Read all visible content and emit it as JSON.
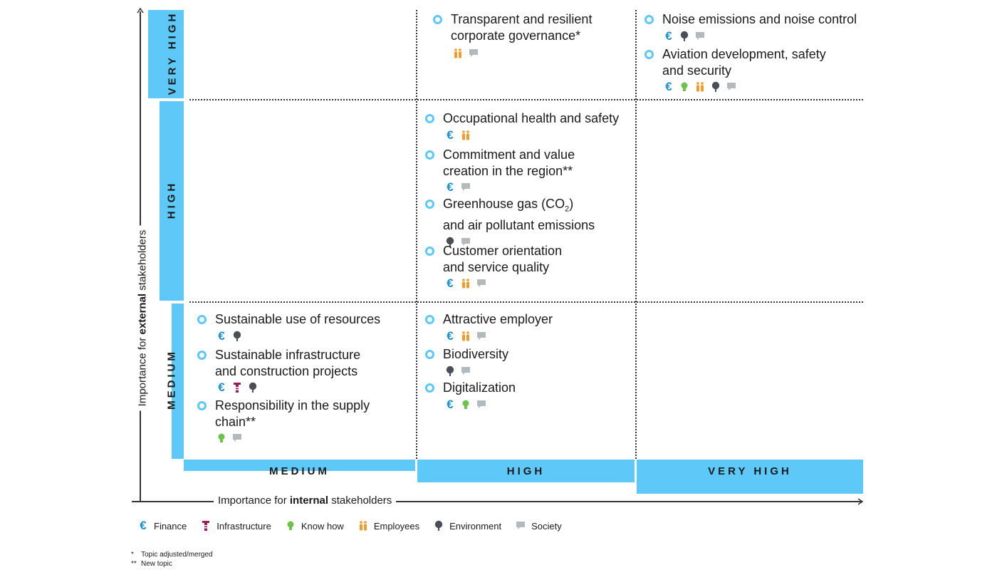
{
  "y_axis": {
    "label_prefix": "Importance for ",
    "label_bold": "external",
    "label_suffix": " stakeholders",
    "levels": [
      "MEDIUM",
      "HIGH",
      "VERY HIGH"
    ]
  },
  "x_axis": {
    "label_prefix": "Importance for ",
    "label_bold": "internal",
    "label_suffix": " stakeholders",
    "levels": [
      "MEDIUM",
      "HIGH",
      "VERY HIGH"
    ]
  },
  "colors": {
    "bar": "#5ec8f8",
    "finance": "#1a8fc9",
    "infrastructure": "#a0195c",
    "know_how": "#6cc24a",
    "employees": "#f39a2b",
    "environment": "#4a4f55",
    "society": "#b4b9be"
  },
  "topics": [
    {
      "id": "governance",
      "title": "Transparent and resilient\ncorporate governance*",
      "external": "VERY HIGH",
      "internal": "HIGH",
      "icons": [
        "employees",
        "society"
      ]
    },
    {
      "id": "noise",
      "title": "Noise emissions and noise control",
      "external": "VERY HIGH",
      "internal": "VERY HIGH",
      "icons": [
        "finance",
        "environment",
        "society"
      ]
    },
    {
      "id": "aviation",
      "title": "Aviation development, safety\nand security",
      "external": "VERY HIGH",
      "internal": "VERY HIGH",
      "icons": [
        "finance",
        "know_how",
        "employees",
        "environment",
        "society"
      ]
    },
    {
      "id": "ohs",
      "title": "Occupational health and safety",
      "external": "HIGH",
      "internal": "HIGH",
      "icons": [
        "finance",
        "employees"
      ]
    },
    {
      "id": "region",
      "title": "Commitment and value\ncreation in the region**",
      "external": "HIGH",
      "internal": "HIGH",
      "icons": [
        "finance",
        "society"
      ]
    },
    {
      "id": "ghg",
      "title_prefix": "Greenhouse gas (CO",
      "title_sub": "2",
      "title_suffix": ")\nand air pollutant emissions",
      "external": "HIGH",
      "internal": "HIGH",
      "icons": [
        "environment",
        "society"
      ]
    },
    {
      "id": "customer",
      "title": "Customer orientation\nand service quality",
      "external": "HIGH",
      "internal": "HIGH",
      "icons": [
        "finance",
        "employees",
        "society"
      ]
    },
    {
      "id": "resources",
      "title": "Sustainable use of resources",
      "external": "MEDIUM",
      "internal": "MEDIUM",
      "icons": [
        "finance",
        "environment"
      ]
    },
    {
      "id": "infrastructure",
      "title": "Sustainable infrastructure\nand construction projects",
      "external": "MEDIUM",
      "internal": "MEDIUM",
      "icons": [
        "finance",
        "infrastructure",
        "environment"
      ]
    },
    {
      "id": "supply",
      "title": "Responsibility in the supply\nchain**",
      "external": "MEDIUM",
      "internal": "MEDIUM",
      "icons": [
        "know_how",
        "society"
      ]
    },
    {
      "id": "employer",
      "title": "Attractive employer",
      "external": "MEDIUM",
      "internal": "HIGH",
      "icons": [
        "finance",
        "employees",
        "society"
      ]
    },
    {
      "id": "biodiversity",
      "title": "Biodiversity",
      "external": "MEDIUM",
      "internal": "HIGH",
      "icons": [
        "environment",
        "society"
      ]
    },
    {
      "id": "digital",
      "title": "Digitalization",
      "external": "MEDIUM",
      "internal": "HIGH",
      "icons": [
        "finance",
        "know_how",
        "society"
      ]
    }
  ],
  "legend": [
    {
      "key": "finance",
      "label": "Finance"
    },
    {
      "key": "infrastructure",
      "label": "Infrastructure"
    },
    {
      "key": "know_how",
      "label": "Know how"
    },
    {
      "key": "employees",
      "label": "Employees"
    },
    {
      "key": "environment",
      "label": "Environment"
    },
    {
      "key": "society",
      "label": "Society"
    }
  ],
  "footnotes": [
    {
      "mark": "*",
      "text": "Topic adjusted/merged"
    },
    {
      "mark": "**",
      "text": "New topic"
    }
  ]
}
